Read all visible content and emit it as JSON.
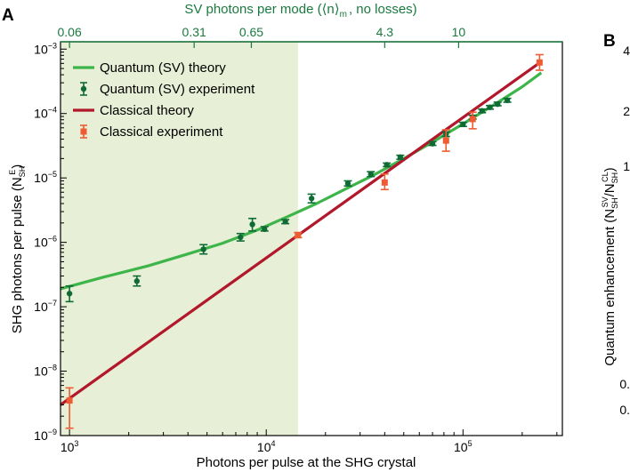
{
  "panel_labels": {
    "a": "A",
    "b": "B"
  },
  "chart_data": [
    {
      "type": "scatter",
      "panel": "A",
      "xlabel": "Photons per pulse at the SHG crystal",
      "ylabel": "SHG photons per pulse (N",
      "ylabel_sub": "SH",
      "ylabel_sup": "E",
      "ylabel_close": ")",
      "x2label": "SV photons per mode (⟨n⟩",
      "x2label_sub": "m",
      "x2label_tail": ", no losses)",
      "xscale": "log",
      "yscale": "log",
      "xlim": [
        900,
        320000
      ],
      "ylim": [
        1e-09,
        0.0013
      ],
      "x_ticks": [
        {
          "value": 1000,
          "base": "10",
          "exp": "3"
        },
        {
          "value": 10000,
          "base": "10",
          "exp": "4"
        },
        {
          "value": 100000,
          "base": "10",
          "exp": "5"
        }
      ],
      "y_ticks": [
        {
          "value": 1e-09,
          "base": "10",
          "exp": "−9"
        },
        {
          "value": 1e-08,
          "base": "10",
          "exp": "−8"
        },
        {
          "value": 1e-07,
          "base": "10",
          "exp": "−7"
        },
        {
          "value": 1e-06,
          "base": "10",
          "exp": "−6"
        },
        {
          "value": 1e-05,
          "base": "10",
          "exp": "−5"
        },
        {
          "value": 0.0001,
          "base": "10",
          "exp": "−4"
        },
        {
          "value": 0.001,
          "base": "10",
          "exp": "−3"
        }
      ],
      "top_ticks": [
        {
          "x": 1000,
          "label": "0.06"
        },
        {
          "x": 4300,
          "label": "0.31"
        },
        {
          "x": 8400,
          "label": "0.65"
        },
        {
          "x": 40000,
          "label": "4.3"
        },
        {
          "x": 95000,
          "label": "10"
        }
      ],
      "shaded_region": {
        "x_from": 900,
        "x_to": 14500,
        "color": "#e7efd6"
      },
      "grid": false,
      "legend_position": "top-left",
      "legend": [
        {
          "label": "Quantum (SV) theory",
          "kind": "line",
          "color": "#3db54a"
        },
        {
          "label": "Quantum (SV) experiment",
          "kind": "errorbar",
          "color": "#0f6b34"
        },
        {
          "label": "Classical theory",
          "kind": "line",
          "color": "#b2182b"
        },
        {
          "label": "Classical experiment",
          "kind": "errorbar",
          "color": "#ef5b33"
        }
      ],
      "series": [
        {
          "name": "Quantum (SV) theory",
          "kind": "line",
          "color": "#3db54a",
          "x": [
            900,
            1500,
            2500,
            4000,
            6000,
            9000,
            13000,
            18000,
            25000,
            35000,
            50000,
            70000,
            100000,
            140000,
            200000,
            250000
          ],
          "y": [
            1.9e-07,
            2.9e-07,
            4.3e-07,
            6.6e-07,
            9.7e-07,
            1.55e-06,
            2.55e-06,
            4e-06,
            6.6e-06,
            1.1e-05,
            2e-05,
            3.6e-05,
            6.9e-05,
            0.00013,
            0.00026,
            0.00043
          ]
        },
        {
          "name": "Quantum (SV) experiment",
          "kind": "points",
          "color": "#0f6b34",
          "x": [
            1000,
            2200,
            4800,
            7400,
            8500,
            9800,
            12500,
            17000,
            26000,
            34000,
            41000,
            48000,
            70000,
            82000,
            100000,
            112000,
            125000,
            137000,
            150000,
            168000
          ],
          "y": [
            1.6e-07,
            2.5e-07,
            7.8e-07,
            1.2e-06,
            1.9e-06,
            1.6e-06,
            2.1e-06,
            4.8e-06,
            8.2e-06,
            1.15e-05,
            1.6e-05,
            2.1e-05,
            3.4e-05,
            4.8e-05,
            6.8e-05,
            8.8e-05,
            0.00011,
            0.000125,
            0.00014,
            0.00016
          ],
          "y_err_low": [
            1.2e-07,
            2.1e-07,
            6.6e-07,
            1.05e-06,
            1.5e-06,
            1.5e-06,
            1.95e-06,
            4.1e-06,
            7.5e-06,
            1.05e-05,
            1.5e-05,
            1.95e-05,
            3.2e-05,
            4.4e-05,
            6.3e-05,
            8.2e-05,
            0.000103,
            0.000117,
            0.000132,
            0.00015
          ],
          "y_err_high": [
            2.1e-07,
            3e-07,
            9.2e-07,
            1.37e-06,
            2.35e-06,
            1.75e-06,
            2.25e-06,
            5.6e-06,
            9e-06,
            1.25e-05,
            1.7e-05,
            2.25e-05,
            3.65e-05,
            5.2e-05,
            7.3e-05,
            9.4e-05,
            0.000117,
            0.000133,
            0.00015,
            0.000172
          ]
        },
        {
          "name": "Classical theory",
          "kind": "line",
          "color": "#b2182b",
          "x": [
            900,
            250000
          ],
          "y": [
            3e-09,
            0.00064
          ]
        },
        {
          "name": "Classical experiment",
          "kind": "points",
          "color": "#ef5b33",
          "x": [
            1000,
            14500,
            40000,
            82000,
            112000,
            245000
          ],
          "y": [
            3.5e-09,
            1.3e-06,
            8.5e-06,
            3.8e-05,
            8.2e-05,
            0.00062
          ],
          "y_err_low": [
            1.3e-09,
            1.18e-06,
            6.6e-06,
            2.6e-05,
            5.8e-05,
            0.00047
          ],
          "y_err_high": [
            5.5e-09,
            1.42e-06,
            1.15e-05,
            5.6e-05,
            0.000105,
            0.00082
          ]
        }
      ]
    },
    {
      "type": "scatter",
      "panel": "B",
      "partial": true,
      "ylabel": "Quantum enhancement (N",
      "ylabel_sub1": "SH",
      "ylabel_sup1": "SV",
      "ylabel_mid": "/N",
      "ylabel_sub2": "SH",
      "ylabel_sup2": "CL",
      "ylabel_close": ")",
      "visible_tick_labels": [
        "4",
        "2",
        "1",
        "0.",
        "0."
      ]
    }
  ]
}
